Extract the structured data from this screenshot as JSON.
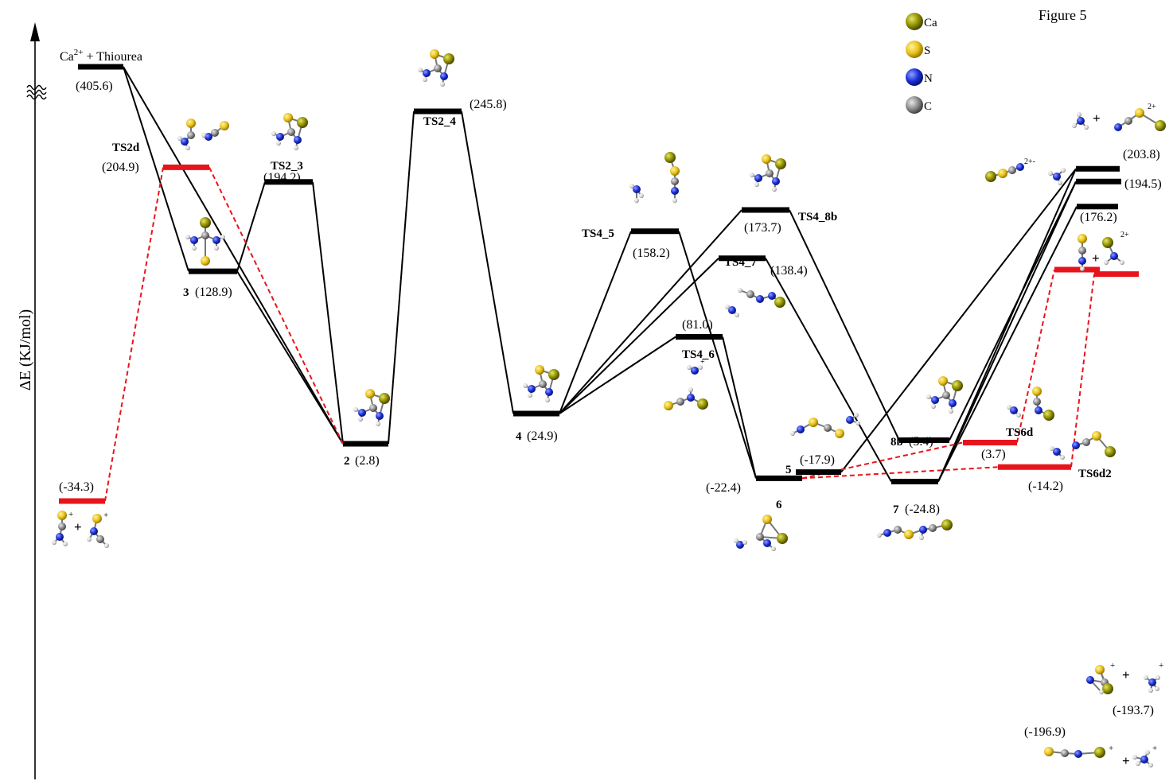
{
  "figure_label": "Figure 5",
  "y_axis_label": "ΔE (KJ/mol)",
  "reactant_label": {
    "species": "Ca",
    "charge": "2+",
    "rest": " + Thiourea"
  },
  "legend": [
    {
      "element": "Ca",
      "color": "#8f8f00"
    },
    {
      "element": "S",
      "color": "#e8c21c"
    },
    {
      "element": "N",
      "color": "#1a2fd8"
    },
    {
      "element": "C",
      "color": "#8a8a8a"
    }
  ],
  "line_colors": {
    "main": "#000000",
    "direct": "#e8141b"
  },
  "levels": [
    {
      "id": "R",
      "name": "",
      "energy": "(405.6)",
      "value": 405.6,
      "path": "main"
    },
    {
      "id": "TS2d",
      "name": "TS2d",
      "energy": "(204.9)",
      "value": 204.9,
      "path": "direct"
    },
    {
      "id": "3",
      "name": "3",
      "energy": "(128.9)",
      "value": 128.9,
      "path": "main"
    },
    {
      "id": "TS2_3",
      "name": "TS2_3",
      "energy": "(194.2)",
      "value": 194.2,
      "path": "main"
    },
    {
      "id": "2",
      "name": "2",
      "energy": "(2.8)",
      "value": 2.8,
      "path": "main"
    },
    {
      "id": "TS2_4",
      "name": "TS2_4",
      "energy": "(245.8)",
      "value": 245.8,
      "path": "main"
    },
    {
      "id": "4",
      "name": "4",
      "energy": "(24.9)",
      "value": 24.9,
      "path": "main"
    },
    {
      "id": "TS4_5",
      "name": "TS4_5",
      "energy": "(158.2)",
      "value": 158.2,
      "path": "main"
    },
    {
      "id": "TS4_6",
      "name": "TS4_6",
      "energy": "(81.0)",
      "value": 81.0,
      "path": "main"
    },
    {
      "id": "TS4_7",
      "name": "TS4_7",
      "energy": "(138.4)",
      "value": 138.4,
      "path": "main"
    },
    {
      "id": "TS4_8b",
      "name": "TS4_8b",
      "energy": "(173.7)",
      "value": 173.7,
      "path": "main"
    },
    {
      "id": "5",
      "name": "5",
      "energy": "(-17.9)",
      "value": -17.9,
      "path": "main"
    },
    {
      "id": "6",
      "name": "6",
      "energy": "(-22.4)",
      "value": -22.4,
      "path": "main"
    },
    {
      "id": "7",
      "name": "7",
      "energy": "(-24.8)",
      "value": -24.8,
      "path": "main"
    },
    {
      "id": "8b",
      "name": "8b",
      "energy": "(5.4)",
      "value": 5.4,
      "path": "main"
    },
    {
      "id": "P1",
      "name": "",
      "energy": "(203.8)",
      "value": 203.8,
      "path": "main"
    },
    {
      "id": "P2",
      "name": "",
      "energy": "(194.5)",
      "value": 194.5,
      "path": "main"
    },
    {
      "id": "P3",
      "name": "",
      "energy": "(176.2)",
      "value": 176.2,
      "path": "main"
    },
    {
      "id": "Rd",
      "name": "",
      "energy": "(-34.3)",
      "value": -34.3,
      "path": "direct"
    },
    {
      "id": "TS6d",
      "name": "TS6d",
      "energy": "(3.7)",
      "value": 3.7,
      "path": "direct"
    },
    {
      "id": "TS6d2",
      "name": "TS6d2",
      "energy": "(-14.2)",
      "value": -14.2,
      "path": "direct"
    },
    {
      "id": "Pd1",
      "name": "",
      "energy": "(-196.9)",
      "value": -196.9,
      "path": "direct"
    },
    {
      "id": "Pd2",
      "name": "",
      "energy": "(-193.7)",
      "value": -193.7,
      "path": "direct"
    }
  ],
  "connections_main": [
    [
      "R",
      "3"
    ],
    [
      "R",
      "2"
    ],
    [
      "3",
      "TS2_3"
    ],
    [
      "3",
      "2"
    ],
    [
      "TS2_3",
      "2"
    ],
    [
      "2",
      "TS2_4"
    ],
    [
      "TS2_4",
      "4"
    ],
    [
      "4",
      "TS4_5"
    ],
    [
      "4",
      "TS4_6"
    ],
    [
      "4",
      "TS4_7"
    ],
    [
      "4",
      "TS4_8b"
    ],
    [
      "TS4_5",
      "6"
    ],
    [
      "TS4_6",
      "6"
    ],
    [
      "TS4_7",
      "7"
    ],
    [
      "TS4_8b",
      "8b"
    ],
    [
      "5",
      "P1"
    ],
    [
      "8b",
      "P2"
    ],
    [
      "7",
      "P1"
    ],
    [
      "7",
      "P2"
    ],
    [
      "7",
      "P3"
    ]
  ],
  "connections_direct": [
    [
      "Rd",
      "TS2d"
    ],
    [
      "TS2d",
      "2"
    ],
    [
      "6",
      "TS6d"
    ],
    [
      "6",
      "TS6d2"
    ],
    [
      "TS6d",
      "Pd1"
    ],
    [
      "TS6d2",
      "Pd2"
    ]
  ],
  "charges": {
    "plus": "+",
    "two_plus": "2+",
    "two_plus_minus": "2+-"
  }
}
